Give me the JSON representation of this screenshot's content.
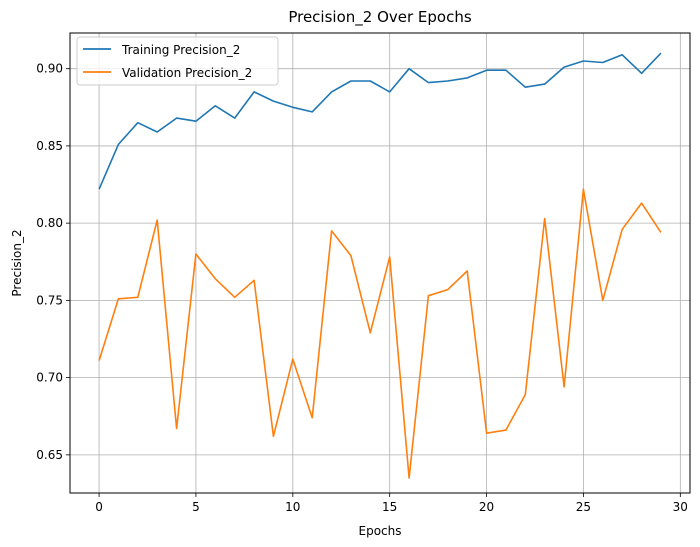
{
  "chart_data": {
    "type": "line",
    "title": "Precision_2 Over Epochs",
    "xlabel": "Epochs",
    "ylabel": "Precision_2",
    "xlim": [
      -1.5,
      30.5
    ],
    "ylim": [
      0.6253,
      0.9231
    ],
    "xticks": [
      0,
      5,
      10,
      15,
      20,
      25,
      30
    ],
    "yticks": [
      0.65,
      0.7,
      0.75,
      0.8,
      0.85,
      0.9
    ],
    "xtick_labels": [
      "0",
      "5",
      "10",
      "15",
      "20",
      "25",
      "30"
    ],
    "ytick_labels": [
      "0.65",
      "0.70",
      "0.75",
      "0.80",
      "0.85",
      "0.90"
    ],
    "grid": true,
    "legend_position": "top-left",
    "x": [
      0,
      1,
      2,
      3,
      4,
      5,
      6,
      7,
      8,
      9,
      10,
      11,
      12,
      13,
      14,
      15,
      16,
      17,
      18,
      19,
      20,
      21,
      22,
      23,
      24,
      25,
      26,
      27,
      28,
      29
    ],
    "series": [
      {
        "name": "Training Precision_2",
        "color": "#1f77b4",
        "values": [
          0.822,
          0.851,
          0.865,
          0.859,
          0.868,
          0.866,
          0.876,
          0.868,
          0.885,
          0.879,
          0.875,
          0.872,
          0.885,
          0.892,
          0.892,
          0.885,
          0.9,
          0.891,
          0.892,
          0.894,
          0.899,
          0.899,
          0.888,
          0.89,
          0.901,
          0.905,
          0.904,
          0.909,
          0.897,
          0.91
        ]
      },
      {
        "name": "Validation Precision_2",
        "color": "#ff7f0e",
        "values": [
          0.711,
          0.751,
          0.752,
          0.802,
          0.667,
          0.78,
          0.764,
          0.752,
          0.763,
          0.662,
          0.712,
          0.674,
          0.795,
          0.779,
          0.729,
          0.778,
          0.635,
          0.753,
          0.757,
          0.769,
          0.664,
          0.666,
          0.689,
          0.803,
          0.694,
          0.822,
          0.75,
          0.796,
          0.813,
          0.794
        ]
      }
    ]
  }
}
